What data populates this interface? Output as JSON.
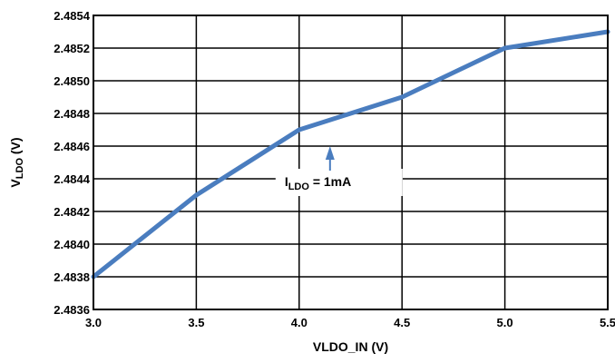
{
  "chart_data": {
    "type": "line",
    "xlabel": "VLDO_IN (V)",
    "ylabel_main": "V",
    "ylabel_sub": "LDO",
    "ylabel_unit": " (V)",
    "xlim": [
      3.0,
      5.5
    ],
    "ylim": [
      2.4836,
      2.4854
    ],
    "x_ticks": [
      "3.0",
      "3.5",
      "4.0",
      "4.5",
      "5.0",
      "5.5"
    ],
    "y_ticks": [
      "2.4836",
      "2.4838",
      "2.4840",
      "2.4842",
      "2.4844",
      "2.4846",
      "2.4848",
      "2.4850",
      "2.4852",
      "2.4854"
    ],
    "grid": true,
    "series": [
      {
        "color": "#4a7dbf",
        "x": [
          3.0,
          3.5,
          4.0,
          4.5,
          5.0,
          5.5
        ],
        "y": [
          2.4838,
          2.4843,
          2.4847,
          2.4849,
          2.4852,
          2.4853
        ]
      }
    ],
    "annotation": {
      "text_main": "I",
      "text_sub": "LDO",
      "text_rest": " = 1mA",
      "arrow_target": [
        4.15,
        2.4846
      ]
    }
  }
}
